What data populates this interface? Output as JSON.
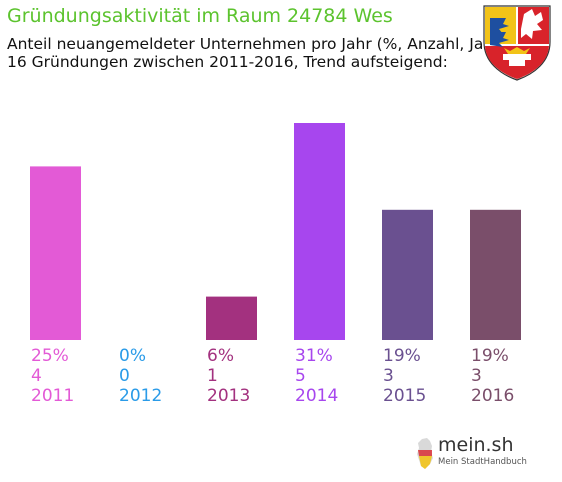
{
  "chart_data": {
    "type": "bar",
    "title": "Gründungsaktivität im Raum 24784 Wes",
    "subtitle_lines": [
      "Anteil neuangemeldeter Unternehmen pro Jahr (%, Anzahl, Jahr)",
      "16 Gründungen zwischen 2011-2016, Trend aufsteigend:"
    ],
    "categories": [
      "2011",
      "2012",
      "2013",
      "2014",
      "2015",
      "2016"
    ],
    "values": [
      4,
      0,
      1,
      5,
      3,
      3
    ],
    "percent_labels": [
      "25%",
      "0%",
      "6%",
      "31%",
      "19%",
      "19%"
    ],
    "colors": [
      "#e35ad6",
      "#2a9be8",
      "#a3317f",
      "#a746ee",
      "#6a5090",
      "#7a4e6a"
    ],
    "ylim": [
      0,
      5
    ],
    "grid": false,
    "legend": "none"
  },
  "branding": {
    "logo_text": "mein.sh",
    "logo_subtext": "Mein StadtHandbuch",
    "crest_icon": "schleswig-holstein-coat-of-arms-icon"
  }
}
